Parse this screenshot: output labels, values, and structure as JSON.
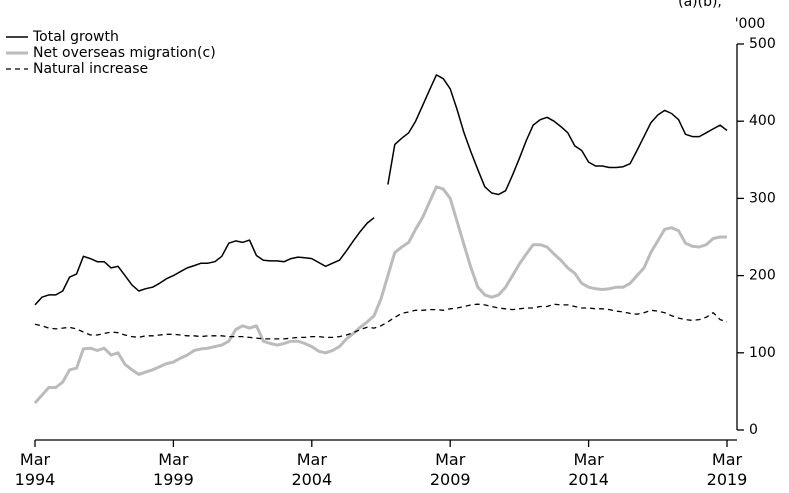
{
  "chart_data": {
    "type": "line",
    "title": "(a)(b),",
    "y_axis_label": "'000",
    "categories": [
      "Mar 1994",
      null,
      null,
      null,
      null,
      null,
      null,
      null,
      null,
      null,
      null,
      null,
      null,
      null,
      null,
      null,
      null,
      null,
      null,
      null,
      "Mar 1999",
      null,
      null,
      null,
      null,
      null,
      null,
      null,
      null,
      null,
      null,
      null,
      null,
      null,
      null,
      null,
      null,
      null,
      null,
      null,
      "Mar 2004",
      null,
      null,
      null,
      null,
      null,
      null,
      null,
      null,
      null,
      null,
      null,
      null,
      null,
      null,
      null,
      null,
      null,
      null,
      null,
      "Mar 2009",
      null,
      null,
      null,
      null,
      null,
      null,
      null,
      null,
      null,
      null,
      null,
      null,
      null,
      null,
      null,
      null,
      null,
      null,
      null,
      "Mar 2014",
      null,
      null,
      null,
      null,
      null,
      null,
      null,
      null,
      null,
      null,
      null,
      null,
      null,
      null,
      null,
      null,
      null,
      null,
      null,
      "Mar 2019"
    ],
    "series": [
      {
        "name": "Total growth",
        "color": "#000000",
        "style": "solid",
        "width": 1.5,
        "values": [
          162,
          172,
          175,
          175,
          180,
          198,
          202,
          225,
          222,
          218,
          218,
          210,
          212,
          200,
          188,
          180,
          183,
          185,
          190,
          196,
          200,
          205,
          210,
          213,
          216,
          216,
          218,
          225,
          242,
          245,
          243,
          246,
          226,
          220,
          219,
          219,
          218,
          222,
          224,
          223,
          222,
          217,
          212,
          216,
          220,
          232,
          245,
          257,
          268,
          275,
          null,
          318,
          370,
          378,
          385,
          400,
          420,
          440,
          460,
          455,
          442,
          415,
          385,
          360,
          337,
          315,
          307,
          305,
          310,
          330,
          352,
          375,
          395,
          402,
          405,
          400,
          393,
          385,
          368,
          362,
          347,
          342,
          342,
          340,
          340,
          341,
          345,
          362,
          380,
          398,
          408,
          414,
          410,
          402,
          383,
          380,
          380,
          385,
          390,
          395,
          388
        ]
      },
      {
        "name": "Net overseas migration(c)",
        "color": "#bbbbbb",
        "style": "solid",
        "width": 3,
        "values": [
          35,
          45,
          55,
          55,
          62,
          78,
          80,
          105,
          106,
          103,
          106,
          97,
          100,
          85,
          78,
          72,
          75,
          78,
          82,
          86,
          88,
          93,
          97,
          103,
          105,
          106,
          108,
          110,
          115,
          130,
          135,
          132,
          135,
          115,
          112,
          110,
          112,
          115,
          115,
          112,
          108,
          102,
          100,
          103,
          108,
          118,
          125,
          133,
          140,
          148,
          170,
          200,
          230,
          237,
          243,
          260,
          275,
          295,
          315,
          312,
          300,
          270,
          240,
          210,
          185,
          175,
          172,
          175,
          185,
          200,
          215,
          228,
          240,
          240,
          237,
          228,
          220,
          210,
          203,
          190,
          185,
          183,
          182,
          183,
          185,
          185,
          190,
          200,
          210,
          230,
          245,
          260,
          262,
          258,
          242,
          238,
          237,
          240,
          248,
          250,
          250
        ]
      },
      {
        "name": "Natural increase",
        "color": "#000000",
        "style": "dashed",
        "width": 1.3,
        "values": [
          137,
          135,
          132,
          131,
          132,
          133,
          131,
          127,
          123,
          123,
          125,
          127,
          126,
          123,
          121,
          120,
          122,
          122,
          123,
          124,
          124,
          123,
          122,
          122,
          121,
          122,
          122,
          122,
          121,
          121,
          121,
          120,
          119,
          118,
          118,
          118,
          118,
          119,
          120,
          120,
          121,
          121,
          120,
          120,
          121,
          123,
          126,
          130,
          133,
          132,
          135,
          140,
          146,
          151,
          153,
          155,
          155,
          156,
          156,
          155,
          157,
          158,
          160,
          162,
          163,
          162,
          160,
          158,
          157,
          156,
          157,
          158,
          158,
          160,
          160,
          163,
          162,
          162,
          160,
          158,
          158,
          157,
          157,
          156,
          154,
          153,
          151,
          150,
          152,
          155,
          154,
          152,
          148,
          145,
          143,
          142,
          143,
          146,
          152,
          143,
          140
        ]
      }
    ],
    "ylim": [
      0,
      500
    ],
    "yticks": [
      0,
      100,
      200,
      300,
      400,
      500
    ],
    "y_axis_side": "right",
    "grid": false,
    "legend": "top-left"
  }
}
